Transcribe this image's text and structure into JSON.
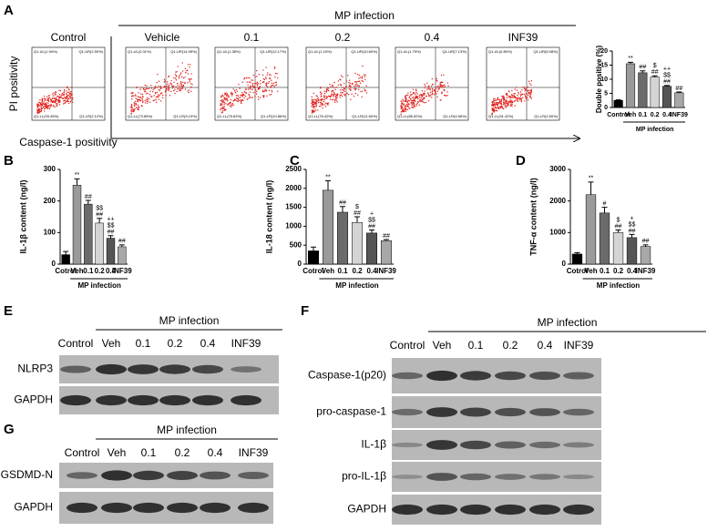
{
  "panel_labels": [
    "A",
    "B",
    "C",
    "D",
    "E",
    "F",
    "G"
  ],
  "flow": {
    "group_label": "MP infection",
    "y_label": "PI positivity",
    "x_label": "Caspase-1 positivity",
    "plots": [
      {
        "title": "Control",
        "quadrants": [
          "Q1-UL(1.94%)",
          "Q1-UR(2.50%)",
          "Q1-LL(93.45%)",
          "Q1-LR(2.12%)"
        ]
      },
      {
        "title": "Vehicle",
        "quadrants": [
          "Q1-UL(2.01%)",
          "Q1-UR(14.95%)",
          "Q1-LL(73.85%)",
          "Q1-LR(9.19%)"
        ]
      },
      {
        "title": "0.1",
        "quadrants": [
          "Q1-UL(1.38%)",
          "Q1-UR(12.17%)",
          "Q1-LL(75.62%)",
          "Q1-LR(10.86%)"
        ]
      },
      {
        "title": "0.2",
        "quadrants": [
          "Q1-UL(1.15%)",
          "Q1-UR(10.60%)",
          "Q1-LL(76.42%)",
          "Q1-LR(11.60%)"
        ]
      },
      {
        "title": "0.4",
        "quadrants": [
          "Q1-UL(1.79%)",
          "Q1-UR(7.13%)",
          "Q1-LL(85.52%)",
          "Q1-LR(4.56%)"
        ]
      },
      {
        "title": "INF39",
        "quadrants": [
          "Q1-UL(0.80%)",
          "Q1-UR(5.08%)",
          "Q1-LL(91.42%)",
          "Q1-LR(2.60%)"
        ]
      }
    ]
  },
  "chart_data": [
    {
      "type": "bar",
      "y_label": "Double positive (%)",
      "group_label": "MP infection",
      "categories": [
        "Control",
        "Veh",
        "0.1",
        "0.2",
        "0.4",
        "INF39"
      ],
      "values": [
        2.5,
        15.5,
        12.3,
        10.8,
        7.5,
        5.2
      ],
      "errors": [
        0.2,
        0.5,
        0.7,
        0.4,
        0.3,
        0.3
      ],
      "colors": [
        "#000000",
        "#9a9a9a",
        "#6b6b6b",
        "#d4d4d4",
        "#555555",
        "#a8a8a8"
      ],
      "annotations": [
        [],
        [
          "**"
        ],
        [
          "##"
        ],
        [
          "$",
          "##"
        ],
        [
          "++",
          "$$",
          "##"
        ],
        [
          "##"
        ]
      ],
      "ylim": [
        0,
        20
      ],
      "yticks": [
        0,
        5,
        10,
        15,
        20
      ]
    },
    {
      "type": "bar",
      "y_label": "IL-1β content (ng/l)",
      "group_label": "MP infection",
      "categories": [
        "Cotrol",
        "Veh",
        "0.1",
        "0.2",
        "0.4",
        "INF39"
      ],
      "values": [
        30,
        250,
        190,
        130,
        82,
        55
      ],
      "errors": [
        10,
        20,
        12,
        15,
        8,
        6
      ],
      "colors": [
        "#000000",
        "#9a9a9a",
        "#6b6b6b",
        "#d4d4d4",
        "#555555",
        "#a8a8a8"
      ],
      "annotations": [
        [],
        [
          "**"
        ],
        [
          "##"
        ],
        [
          "$$",
          "##"
        ],
        [
          "++",
          "$$",
          "##"
        ],
        [
          "##"
        ]
      ],
      "ylim": [
        0,
        300
      ],
      "yticks": [
        0,
        100,
        200,
        300
      ]
    },
    {
      "type": "bar",
      "y_label": "IL-18 content (ng/l)",
      "group_label": "MP infection",
      "categories": [
        "Cotrol",
        "Veh",
        "0.1",
        "0.2",
        "0.4",
        "INF39"
      ],
      "values": [
        350,
        1950,
        1370,
        1100,
        820,
        620
      ],
      "errors": [
        100,
        250,
        150,
        150,
        80,
        30
      ],
      "colors": [
        "#000000",
        "#9a9a9a",
        "#6b6b6b",
        "#d4d4d4",
        "#555555",
        "#a8a8a8"
      ],
      "annotations": [
        [],
        [
          "**"
        ],
        [
          "##"
        ],
        [
          "$",
          "##"
        ],
        [
          "+",
          "$$",
          "##"
        ],
        [
          "##"
        ]
      ],
      "ylim": [
        0,
        2500
      ],
      "yticks": [
        0,
        500,
        1000,
        1500,
        2000,
        2500
      ]
    },
    {
      "type": "bar",
      "y_label": "TNF-α content (ng/l)",
      "group_label": "MP infection",
      "categories": [
        "Cotrol",
        "Veh",
        "0.1",
        "0.2",
        "0.4",
        "INF39"
      ],
      "values": [
        320,
        2200,
        1620,
        1000,
        840,
        560
      ],
      "errors": [
        40,
        400,
        180,
        80,
        100,
        50
      ],
      "colors": [
        "#000000",
        "#9a9a9a",
        "#6b6b6b",
        "#d4d4d4",
        "#555555",
        "#a8a8a8"
      ],
      "annotations": [
        [],
        [
          "**"
        ],
        [
          "#"
        ],
        [
          "$",
          "##"
        ],
        [
          "+",
          "$$",
          "##"
        ],
        [
          "##"
        ]
      ],
      "ylim": [
        0,
        3000
      ],
      "yticks": [
        0,
        1000,
        2000,
        3000
      ]
    }
  ],
  "blots": [
    {
      "group_label": "MP infection",
      "lanes": [
        "Control",
        "Veh",
        "0.1",
        "0.2",
        "0.4",
        "INF39"
      ],
      "rows": [
        "NLRP3",
        "GAPDH"
      ]
    },
    {
      "group_label": "MP infection",
      "lanes": [
        "Control",
        "Veh",
        "0.1",
        "0.2",
        "0.4",
        "INF39"
      ],
      "rows": [
        "Caspase-1(p20)",
        "pro-caspase-1",
        "IL-1β",
        "pro-IL-1β",
        "GAPDH"
      ]
    },
    {
      "group_label": "MP infection",
      "lanes": [
        "Control",
        "Veh",
        "0.1",
        "0.2",
        "0.4",
        "INF39"
      ],
      "rows": [
        "GSDMD-N",
        "GAPDH"
      ]
    }
  ]
}
